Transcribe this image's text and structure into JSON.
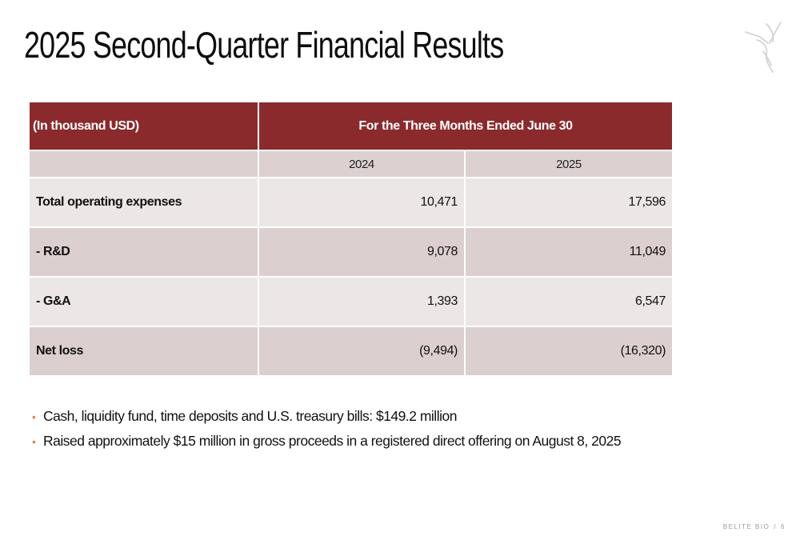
{
  "slide": {
    "title": "2025 Second-Quarter Financial Results"
  },
  "table": {
    "unit_label": "(In thousand USD)",
    "period_header": "For the Three Months Ended June 30",
    "years": [
      "2024",
      "2025"
    ],
    "rows": [
      {
        "label": "Total operating expenses",
        "values": [
          "10,471",
          "17,596"
        ]
      },
      {
        "label": "- R&D",
        "values": [
          "9,078",
          "11,049"
        ]
      },
      {
        "label": "- G&A",
        "values": [
          "1,393",
          "6,547"
        ]
      },
      {
        "label": "Net loss",
        "values": [
          "(9,494)",
          "(16,320)"
        ]
      }
    ]
  },
  "bullets": [
    "Cash, liquidity fund, time deposits and U.S. treasury bills: $149.2 million",
    "Raised approximately $15 million in gross proceeds in a registered direct offering on August 8, 2025"
  ],
  "footer": {
    "company": "BELITE BIO",
    "separator": "/",
    "page_number": "6"
  },
  "colors": {
    "header_bg": "#8b2a2d",
    "row_dark": "#dccfd0",
    "row_light": "#ece6e6",
    "bullet": "#e08a4a"
  },
  "icons": {
    "logo": "hummingbird-logo-icon"
  }
}
